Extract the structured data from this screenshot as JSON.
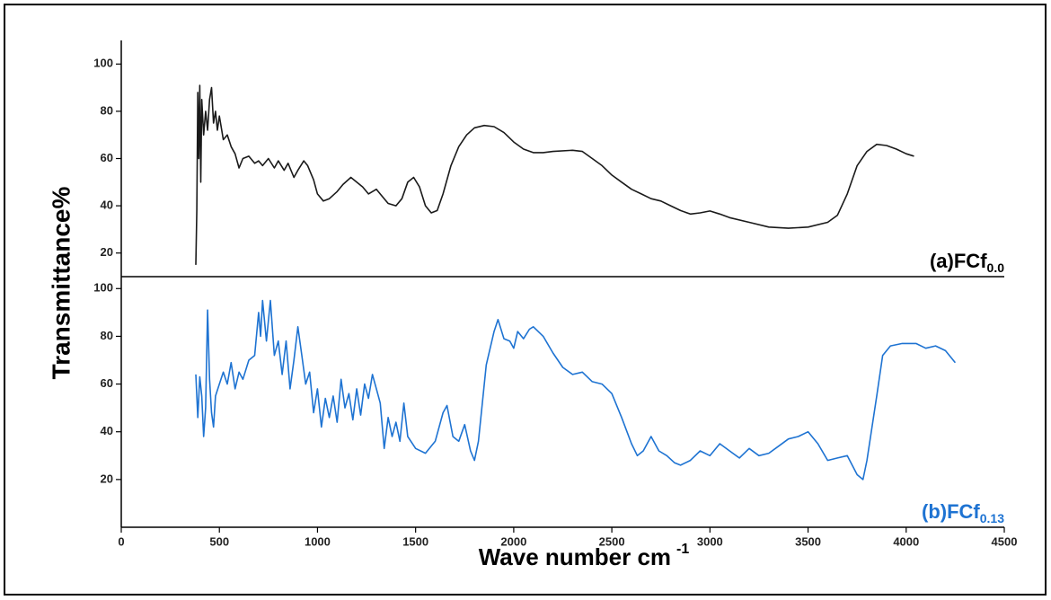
{
  "chart_data": [
    {
      "type": "line",
      "y_label": "Transmittance%",
      "color": "#1a1a1a",
      "annotation": {
        "text": "(a)FCf",
        "subscript": "0.0"
      },
      "xlim": [
        0,
        4500
      ],
      "ylim": [
        10,
        110
      ],
      "yticks": [
        20,
        40,
        60,
        80,
        100
      ],
      "x": [
        380,
        385,
        390,
        395,
        400,
        405,
        410,
        420,
        430,
        440,
        450,
        460,
        470,
        480,
        490,
        500,
        520,
        540,
        560,
        580,
        600,
        620,
        650,
        680,
        700,
        720,
        750,
        780,
        800,
        830,
        850,
        880,
        900,
        930,
        950,
        980,
        1000,
        1030,
        1060,
        1100,
        1130,
        1170,
        1200,
        1230,
        1260,
        1300,
        1330,
        1360,
        1400,
        1430,
        1460,
        1490,
        1520,
        1550,
        1580,
        1610,
        1640,
        1680,
        1720,
        1760,
        1800,
        1850,
        1900,
        1950,
        2000,
        2050,
        2100,
        2150,
        2200,
        2300,
        2350,
        2400,
        2450,
        2500,
        2550,
        2600,
        2650,
        2700,
        2750,
        2800,
        2850,
        2900,
        2950,
        3000,
        3050,
        3100,
        3200,
        3300,
        3400,
        3500,
        3600,
        3650,
        3700,
        3750,
        3800,
        3850,
        3900,
        3950,
        4000,
        4040
      ],
      "values": [
        15,
        38,
        88,
        60,
        91,
        50,
        85,
        70,
        80,
        72,
        85,
        90,
        75,
        80,
        72,
        78,
        68,
        70,
        65,
        62,
        56,
        60,
        61,
        58,
        59,
        57,
        60,
        56,
        59,
        55,
        58,
        52,
        55,
        59,
        57,
        51,
        45,
        42,
        43,
        46,
        49,
        52,
        50,
        48,
        45,
        47,
        44,
        41,
        40,
        43,
        50,
        52,
        48,
        40,
        37,
        38,
        45,
        57,
        65,
        70,
        73,
        74,
        73.5,
        71,
        67,
        64,
        62.5,
        62.5,
        63,
        63.5,
        63,
        60,
        57,
        53,
        50,
        47,
        45,
        43,
        42,
        40,
        38,
        36.5,
        37,
        37.8,
        36.5,
        35,
        33,
        31,
        30.5,
        31,
        33,
        36,
        45,
        57,
        63,
        66,
        65.5,
        64,
        62,
        61
      ]
    },
    {
      "type": "line",
      "x_label": {
        "text": "Wave number cm",
        "superscript": "-1"
      },
      "color": "#1e73d2",
      "annotation": {
        "text": "(b)FCf",
        "subscript": "0.13"
      },
      "xlim": [
        0,
        4500
      ],
      "xticks": [
        0,
        500,
        1000,
        1500,
        2000,
        2500,
        3000,
        3500,
        4000,
        4500
      ],
      "ylim": [
        0,
        105
      ],
      "yticks": [
        20,
        40,
        60,
        80,
        100
      ],
      "x": [
        380,
        390,
        400,
        410,
        420,
        430,
        440,
        450,
        460,
        470,
        480,
        500,
        520,
        540,
        560,
        580,
        600,
        620,
        650,
        680,
        700,
        710,
        720,
        740,
        760,
        780,
        800,
        820,
        840,
        860,
        880,
        900,
        920,
        940,
        960,
        980,
        1000,
        1020,
        1040,
        1060,
        1080,
        1100,
        1120,
        1140,
        1160,
        1180,
        1200,
        1220,
        1240,
        1260,
        1280,
        1300,
        1320,
        1340,
        1360,
        1380,
        1400,
        1420,
        1440,
        1460,
        1500,
        1550,
        1600,
        1640,
        1660,
        1690,
        1720,
        1750,
        1780,
        1800,
        1820,
        1860,
        1900,
        1920,
        1950,
        1980,
        2000,
        2020,
        2050,
        2080,
        2100,
        2150,
        2200,
        2250,
        2300,
        2350,
        2400,
        2450,
        2500,
        2550,
        2600,
        2630,
        2660,
        2700,
        2740,
        2780,
        2820,
        2850,
        2900,
        2950,
        3000,
        3050,
        3100,
        3150,
        3200,
        3250,
        3300,
        3350,
        3400,
        3450,
        3500,
        3550,
        3600,
        3650,
        3700,
        3750,
        3780,
        3800,
        3850,
        3880,
        3920,
        3980,
        4050,
        4100,
        4150,
        4200,
        4250
      ],
      "values": [
        64,
        46,
        63,
        55,
        38,
        50,
        91,
        62,
        48,
        42,
        55,
        60,
        65,
        60,
        69,
        58,
        65,
        62,
        70,
        72,
        90,
        80,
        95,
        78,
        95,
        72,
        78,
        64,
        78,
        58,
        70,
        84,
        72,
        60,
        65,
        48,
        58,
        42,
        54,
        46,
        55,
        44,
        62,
        50,
        56,
        45,
        58,
        47,
        60,
        54,
        64,
        58,
        52,
        33,
        46,
        38,
        44,
        36,
        52,
        38,
        33,
        31,
        36,
        48,
        51,
        38,
        36,
        43,
        32,
        28,
        36,
        68,
        82,
        87,
        79,
        78,
        75,
        82,
        79,
        83,
        84,
        80,
        73,
        67,
        64,
        65,
        61,
        60,
        56,
        46,
        35,
        30,
        32,
        38,
        32,
        30,
        27,
        26,
        28,
        32,
        30,
        35,
        32,
        29,
        33,
        30,
        31,
        34,
        37,
        38,
        40,
        35,
        28,
        29,
        30,
        22,
        20,
        28,
        55,
        72,
        76,
        77,
        77,
        75,
        76,
        74,
        69
      ]
    }
  ]
}
